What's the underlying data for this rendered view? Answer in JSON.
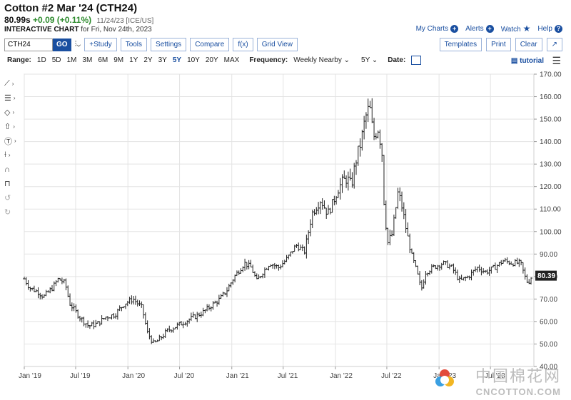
{
  "header": {
    "title": "Cotton #2 Mar '24 (CTH24)",
    "last": "80.99s",
    "change": "+0.09 (+0.11%)",
    "meta": "11/24/23 [ICE/US]",
    "chart_label": "INTERACTIVE CHART",
    "chart_date": "for Fri, Nov 24th, 2023",
    "links": {
      "my_charts": "My Charts",
      "alerts": "Alerts",
      "watch": "Watch",
      "help": "Help"
    }
  },
  "toolbar": {
    "symbol": "CTH24",
    "go": "GO",
    "study": "+Study",
    "tools": "Tools",
    "settings": "Settings",
    "compare": "Compare",
    "fx": "f(x)",
    "grid": "Grid View",
    "templates": "Templates",
    "print": "Print",
    "clear": "Clear"
  },
  "rangebar": {
    "range_label": "Range:",
    "ranges": [
      "1D",
      "5D",
      "1M",
      "3M",
      "6M",
      "9M",
      "1Y",
      "2Y",
      "3Y",
      "5Y",
      "10Y",
      "20Y",
      "MAX"
    ],
    "active_range": "5Y",
    "freq_label": "Frequency:",
    "freq_value": "Weekly Nearby",
    "period_value": "5Y",
    "date_label": "Date:",
    "tutorial": "tutorial"
  },
  "icons": [
    "trendline-icon",
    "fibonacci-icon",
    "shapes-icon",
    "arrow-icon",
    "text-icon",
    "measure-icon",
    "magnet-icon",
    "lock-icon",
    "undo-icon",
    "redo-icon",
    "calendar-icon",
    "menu-icon"
  ],
  "colors": {
    "bars": "#222222",
    "accent": "#1a4fa0",
    "last_label_bg": "#222222",
    "positive": "#2e8b2e"
  },
  "watermark": {
    "cn": "中国棉花网",
    "en": "CNCOTTON.COM"
  },
  "chart_data": {
    "type": "ohlc",
    "frequency": "weekly",
    "yticks": [
      40,
      50,
      60,
      70,
      80,
      90,
      100,
      110,
      120,
      130,
      140,
      150,
      160,
      170
    ],
    "ytick_labels": [
      "40.00",
      "50.00",
      "60.00",
      "70.00",
      "80.00",
      "90.00",
      "100.00",
      "110.00",
      "120.00",
      "130.00",
      "140.00",
      "150.00",
      "160.00",
      "170.00"
    ],
    "ylim": [
      40,
      170
    ],
    "xticks": [
      "Jan '19",
      "Jul '19",
      "Jan '20",
      "Jul '20",
      "Jan '21",
      "Jul '21",
      "Jan '22",
      "Jul '22",
      "Jan '23",
      "Jul '23"
    ],
    "xlim": [
      "2019-01-01",
      "2023-12-01"
    ],
    "grid": true,
    "last_value_label": "80.39",
    "last_value": 80.39,
    "price_path": [
      [
        "2019-01-01",
        79
      ],
      [
        "2019-01-20",
        75
      ],
      [
        "2019-02-20",
        73
      ],
      [
        "2019-03-10",
        71
      ],
      [
        "2019-04-10",
        75
      ],
      [
        "2019-05-01",
        79
      ],
      [
        "2019-05-25",
        77
      ],
      [
        "2019-06-10",
        68
      ],
      [
        "2019-07-15",
        62
      ],
      [
        "2019-08-15",
        58
      ],
      [
        "2019-09-15",
        59
      ],
      [
        "2019-10-15",
        62
      ],
      [
        "2019-11-15",
        63
      ],
      [
        "2019-12-20",
        68
      ],
      [
        "2020-01-20",
        70
      ],
      [
        "2020-02-20",
        66
      ],
      [
        "2020-03-10",
        55
      ],
      [
        "2020-04-01",
        50
      ],
      [
        "2020-04-20",
        52
      ],
      [
        "2020-05-20",
        56
      ],
      [
        "2020-06-20",
        58
      ],
      [
        "2020-07-20",
        60
      ],
      [
        "2020-08-20",
        62
      ],
      [
        "2020-09-20",
        64
      ],
      [
        "2020-10-20",
        67
      ],
      [
        "2020-11-20",
        70
      ],
      [
        "2020-12-15",
        74
      ],
      [
        "2021-01-10",
        80
      ],
      [
        "2021-02-15",
        86
      ],
      [
        "2021-03-10",
        84
      ],
      [
        "2021-03-30",
        78
      ],
      [
        "2021-04-20",
        82
      ],
      [
        "2021-05-15",
        86
      ],
      [
        "2021-06-15",
        84
      ],
      [
        "2021-07-15",
        88
      ],
      [
        "2021-08-15",
        94
      ],
      [
        "2021-09-15",
        91
      ],
      [
        "2021-10-10",
        108
      ],
      [
        "2021-11-10",
        114
      ],
      [
        "2021-12-05",
        108
      ],
      [
        "2021-12-20",
        112
      ],
      [
        "2022-01-15",
        120
      ],
      [
        "2022-02-10",
        124
      ],
      [
        "2022-02-25",
        120
      ],
      [
        "2022-03-15",
        132
      ],
      [
        "2022-04-01",
        140
      ],
      [
        "2022-04-15",
        150
      ],
      [
        "2022-05-01",
        156
      ],
      [
        "2022-05-15",
        142
      ],
      [
        "2022-06-01",
        146
      ],
      [
        "2022-06-15",
        134
      ],
      [
        "2022-06-22",
        110
      ],
      [
        "2022-07-05",
        95
      ],
      [
        "2022-07-20",
        99
      ],
      [
        "2022-08-10",
        118
      ],
      [
        "2022-08-25",
        110
      ],
      [
        "2022-09-10",
        99
      ],
      [
        "2022-09-25",
        90
      ],
      [
        "2022-10-15",
        82
      ],
      [
        "2022-10-30",
        74
      ],
      [
        "2022-11-15",
        82
      ],
      [
        "2022-12-10",
        84
      ],
      [
        "2023-01-15",
        86
      ],
      [
        "2023-02-15",
        84
      ],
      [
        "2023-03-15",
        78
      ],
      [
        "2023-04-15",
        80
      ],
      [
        "2023-05-15",
        84
      ],
      [
        "2023-06-15",
        82
      ],
      [
        "2023-07-15",
        84
      ],
      [
        "2023-08-15",
        87
      ],
      [
        "2023-09-15",
        86
      ],
      [
        "2023-10-15",
        86
      ],
      [
        "2023-10-30",
        80
      ],
      [
        "2023-11-10",
        77
      ],
      [
        "2023-11-24",
        80.4
      ]
    ]
  }
}
